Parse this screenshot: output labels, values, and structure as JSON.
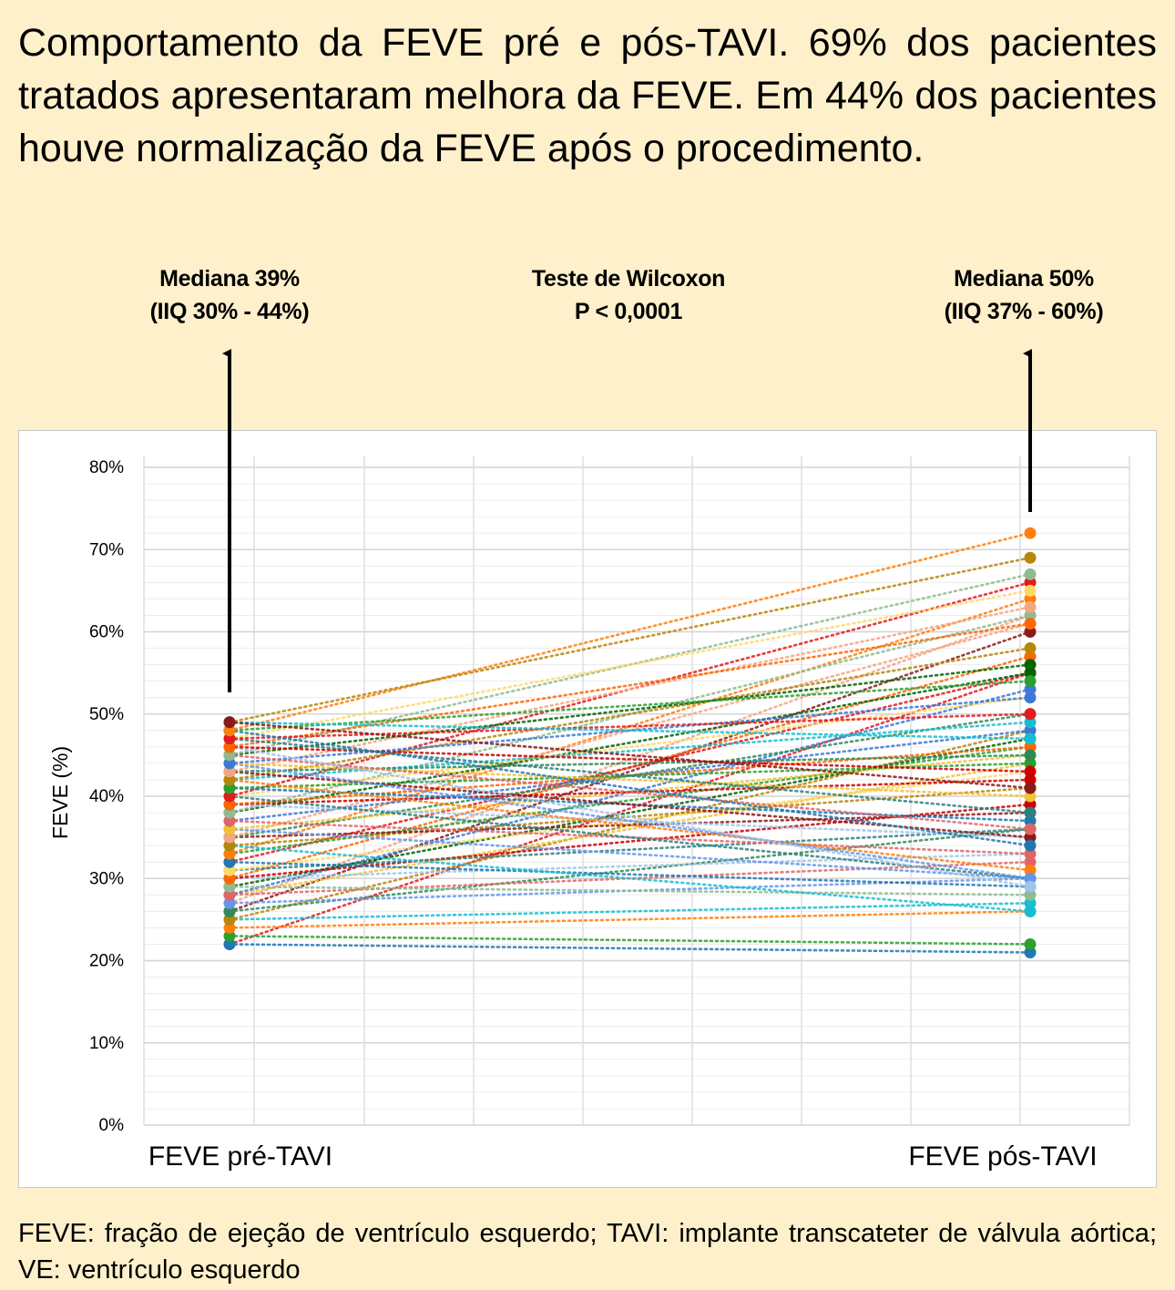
{
  "title": "Comportamento da FEVE pré e pós-TAVI. 69% dos pacientes tratados apresentaram melhora da FEVE. Em 44% dos pacientes houve normalização da FEVE após o procedimento.",
  "annotations": {
    "left": [
      "Mediana 39%",
      "(IIQ 30% - 44%)"
    ],
    "center": [
      "Teste de Wilcoxon",
      "P < 0,0001"
    ],
    "right": [
      "Mediana 50%",
      "(IIQ 37% - 60%)"
    ]
  },
  "footnote": "FEVE: fração de ejeção de ventrículo esquerdo; TAVI: implante transcateter de válvula aórtica; VE: ventrículo esquerdo",
  "colors": {
    "background": "#fdf0cb",
    "palette": [
      "#e41a1c",
      "#1f77b4",
      "#2ca02c",
      "#ff7f0e",
      "#17becf",
      "#b8860b",
      "#8b1a1a",
      "#2e8b57",
      "#f4a582",
      "#6495ed",
      "#f1c232",
      "#3c78d8",
      "#e06666",
      "#006400",
      "#8fbc8f",
      "#9fc5e8",
      "#cc0000",
      "#ff6600",
      "#2f7f7f",
      "#ffd966"
    ]
  },
  "chart_data": {
    "type": "line",
    "title": "",
    "xlabel": "",
    "ylabel": "FEVE (%)",
    "categories": [
      "FEVE pré-TAVI",
      "FEVE pós-TAVI"
    ],
    "ylim": [
      0,
      80
    ],
    "yticks": [
      "0%",
      "10%",
      "20%",
      "30%",
      "40%",
      "50%",
      "60%",
      "70%",
      "80%"
    ],
    "line_style": "dotted",
    "grid": true,
    "legend": "none",
    "pairs": [
      [
        22,
        55
      ],
      [
        22,
        21
      ],
      [
        23,
        22
      ],
      [
        24,
        26
      ],
      [
        25,
        27
      ],
      [
        25,
        48
      ],
      [
        26,
        60
      ],
      [
        26,
        36
      ],
      [
        27,
        62
      ],
      [
        27,
        30
      ],
      [
        28,
        44
      ],
      [
        28,
        53
      ],
      [
        28,
        32
      ],
      [
        29,
        47
      ],
      [
        29,
        28
      ],
      [
        30,
        33
      ],
      [
        30,
        39
      ],
      [
        30,
        57
      ],
      [
        31,
        36
      ],
      [
        31,
        43
      ],
      [
        32,
        55
      ],
      [
        32,
        29
      ],
      [
        33,
        46
      ],
      [
        33,
        64
      ],
      [
        34,
        26
      ],
      [
        34,
        41
      ],
      [
        35,
        38
      ],
      [
        35,
        50
      ],
      [
        35,
        61
      ],
      [
        36,
        30
      ],
      [
        36,
        45
      ],
      [
        37,
        48
      ],
      [
        37,
        33
      ],
      [
        38,
        55
      ],
      [
        38,
        62
      ],
      [
        39,
        35
      ],
      [
        39,
        42
      ],
      [
        39,
        46
      ],
      [
        40,
        30
      ],
      [
        40,
        52
      ],
      [
        40,
        66
      ],
      [
        41,
        37
      ],
      [
        41,
        44
      ],
      [
        42,
        31
      ],
      [
        42,
        49
      ],
      [
        42,
        58
      ],
      [
        43,
        35
      ],
      [
        43,
        45
      ],
      [
        43,
        63
      ],
      [
        44,
        30
      ],
      [
        44,
        40
      ],
      [
        44,
        52
      ],
      [
        45,
        36
      ],
      [
        45,
        56
      ],
      [
        45,
        67
      ],
      [
        46,
        29
      ],
      [
        46,
        43
      ],
      [
        46,
        61
      ],
      [
        47,
        38
      ],
      [
        47,
        65
      ],
      [
        47,
        50
      ],
      [
        48,
        34
      ],
      [
        48,
        54
      ],
      [
        48,
        72
      ],
      [
        49,
        47
      ],
      [
        49,
        69
      ],
      [
        49,
        41
      ]
    ]
  }
}
